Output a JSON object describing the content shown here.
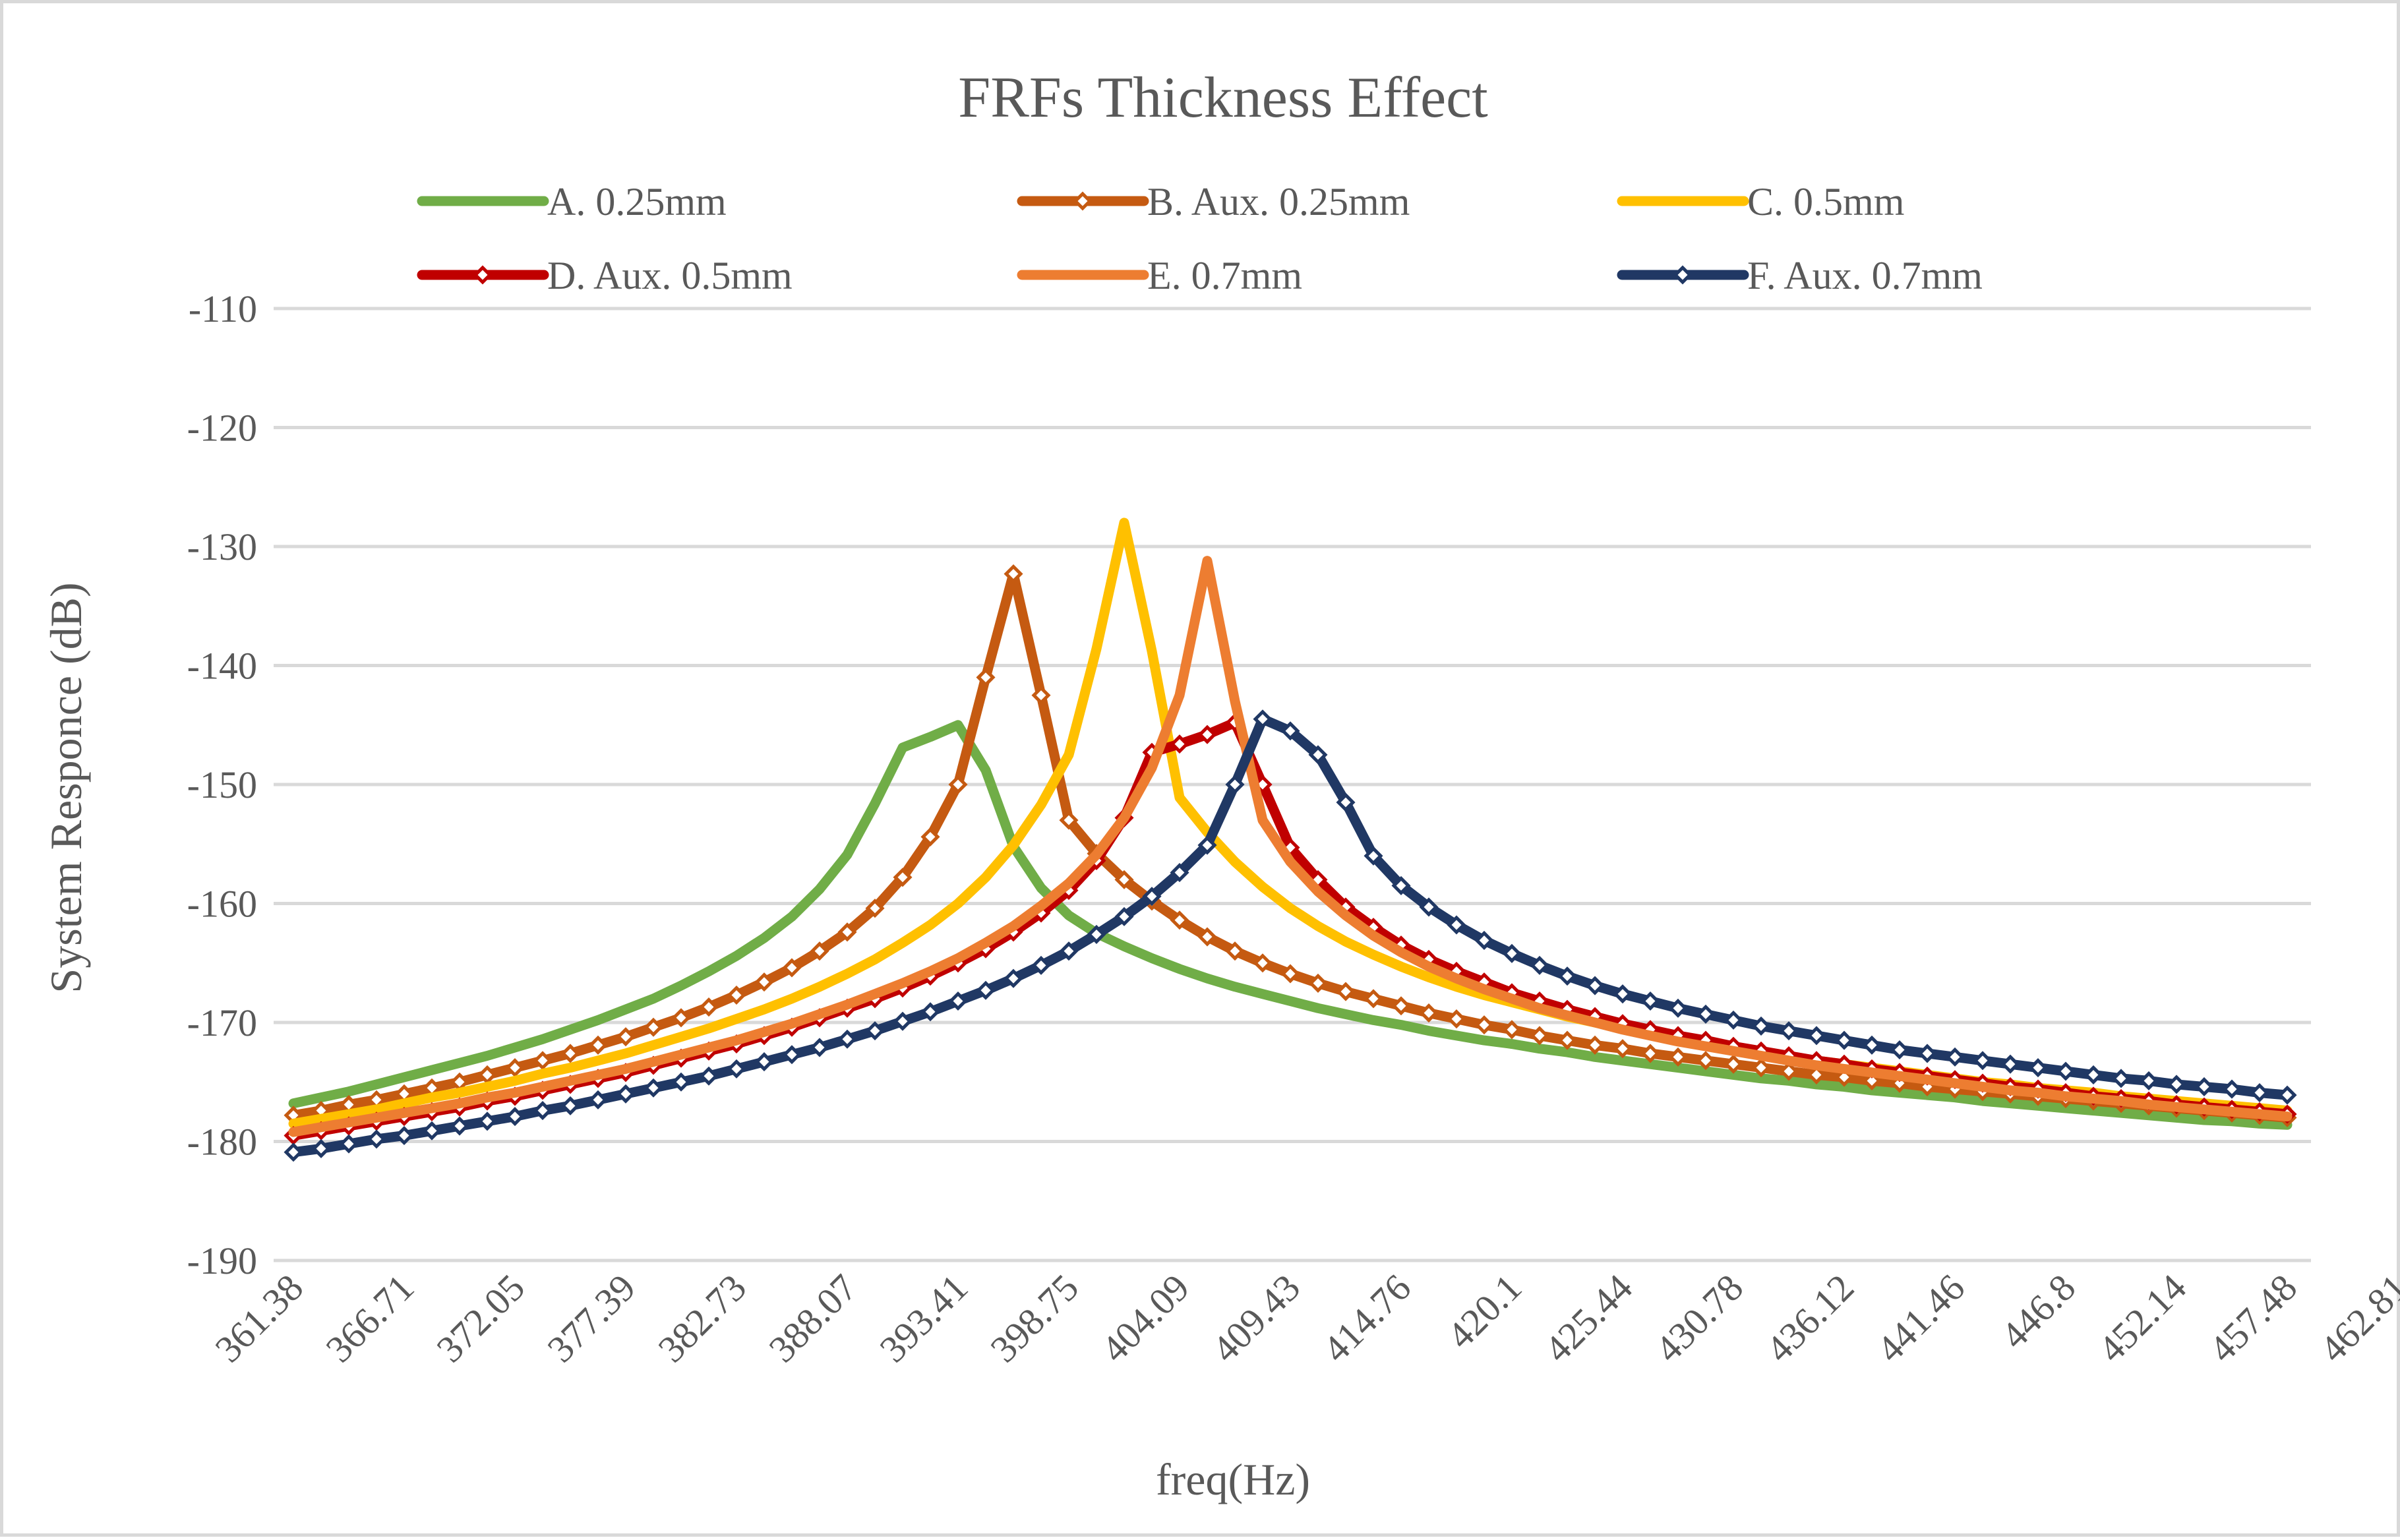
{
  "chart_data": {
    "type": "line",
    "title": "FRFs Thickness Effect",
    "xlabel": "freq(Hz)",
    "ylabel": "System  Responce (dB)",
    "ylim": [
      -190,
      -110
    ],
    "yticks": [
      -110,
      -120,
      -130,
      -140,
      -150,
      -160,
      -170,
      -180,
      -190
    ],
    "grid": true,
    "legend_position": "top",
    "x_start": 361.38,
    "x_step": 1.3349,
    "tick_labels": [
      "361.38",
      "366.71",
      "372.05",
      "377.39",
      "382.73",
      "388.07",
      "393.41",
      "398.75",
      "404.09",
      "409.43",
      "414.76",
      "420.1",
      "425.44",
      "430.78",
      "436.12",
      "441.46",
      "446.8",
      "452.14",
      "457.48",
      "462.81"
    ],
    "tick_every": 4,
    "series": [
      {
        "name": "A. 0.25mm",
        "color": "#70ad47",
        "marker": false,
        "values": [
          -176.8,
          -176.3,
          -175.8,
          -175.2,
          -174.6,
          -174.0,
          -173.4,
          -172.8,
          -172.1,
          -171.4,
          -170.6,
          -169.8,
          -168.9,
          -168.0,
          -166.9,
          -165.7,
          -164.4,
          -162.9,
          -161.1,
          -158.8,
          -155.9,
          -151.6,
          -146.9,
          -146.0,
          -145.0,
          -148.8,
          -155.2,
          -158.7,
          -161.0,
          -162.5,
          -163.6,
          -164.6,
          -165.5,
          -166.3,
          -167.0,
          -167.6,
          -168.2,
          -168.8,
          -169.3,
          -169.8,
          -170.2,
          -170.7,
          -171.1,
          -171.5,
          -171.8,
          -172.2,
          -172.5,
          -172.9,
          -173.2,
          -173.5,
          -173.8,
          -174.1,
          -174.4,
          -174.7,
          -174.9,
          -175.2,
          -175.4,
          -175.7,
          -175.9,
          -176.1,
          -176.3,
          -176.6,
          -176.8,
          -177.0,
          -177.2,
          -177.4,
          -177.6,
          -177.8,
          -178.0,
          -178.2,
          -178.3,
          -178.5,
          -178.6
        ]
      },
      {
        "name": "B. Aux. 0.25mm",
        "color": "#c55a11",
        "marker": true,
        "values": [
          -177.8,
          -177.4,
          -176.9,
          -176.5,
          -176.0,
          -175.5,
          -175.0,
          -174.4,
          -173.8,
          -173.2,
          -172.6,
          -171.9,
          -171.2,
          -170.4,
          -169.6,
          -168.7,
          -167.7,
          -166.6,
          -165.4,
          -164.0,
          -162.4,
          -160.4,
          -157.8,
          -154.4,
          -150.0,
          -141.0,
          -132.3,
          -142.5,
          -153.0,
          -155.8,
          -158.0,
          -159.8,
          -161.4,
          -162.8,
          -164.0,
          -165.0,
          -165.9,
          -166.7,
          -167.4,
          -168.0,
          -168.6,
          -169.2,
          -169.7,
          -170.2,
          -170.6,
          -171.1,
          -171.5,
          -171.9,
          -172.2,
          -172.6,
          -172.9,
          -173.2,
          -173.5,
          -173.8,
          -174.1,
          -174.4,
          -174.6,
          -174.9,
          -175.1,
          -175.4,
          -175.6,
          -175.8,
          -176.0,
          -176.2,
          -176.4,
          -176.6,
          -176.8,
          -177.0,
          -177.2,
          -177.4,
          -177.6,
          -177.8,
          -178.0
        ]
      },
      {
        "name": "C. 0.5mm",
        "color": "#ffc000",
        "marker": false,
        "values": [
          -178.5,
          -178.1,
          -177.7,
          -177.3,
          -176.8,
          -176.3,
          -175.9,
          -175.4,
          -174.9,
          -174.3,
          -173.8,
          -173.2,
          -172.6,
          -171.9,
          -171.2,
          -170.5,
          -169.7,
          -168.9,
          -168.0,
          -167.0,
          -165.9,
          -164.7,
          -163.3,
          -161.8,
          -160.0,
          -157.8,
          -155.1,
          -151.7,
          -147.5,
          -138.6,
          -128.0,
          -138.8,
          -151.1,
          -154.0,
          -156.5,
          -158.6,
          -160.4,
          -161.9,
          -163.2,
          -164.3,
          -165.3,
          -166.2,
          -167.0,
          -167.7,
          -168.3,
          -168.9,
          -169.5,
          -170.0,
          -170.5,
          -170.9,
          -171.4,
          -171.8,
          -172.2,
          -172.5,
          -172.9,
          -173.2,
          -173.5,
          -173.8,
          -174.1,
          -174.4,
          -174.7,
          -175.0,
          -175.2,
          -175.5,
          -175.7,
          -175.9,
          -176.2,
          -176.4,
          -176.6,
          -176.8,
          -177.0,
          -177.2,
          -177.4
        ]
      },
      {
        "name": "D. Aux. 0.5mm",
        "color": "#c00000",
        "marker": true,
        "values": [
          -179.5,
          -179.1,
          -178.7,
          -178.3,
          -177.9,
          -177.5,
          -177.1,
          -176.6,
          -176.2,
          -175.7,
          -175.2,
          -174.7,
          -174.2,
          -173.6,
          -173.0,
          -172.4,
          -171.8,
          -171.1,
          -170.4,
          -169.6,
          -168.8,
          -168.0,
          -167.1,
          -166.1,
          -165.0,
          -163.8,
          -162.4,
          -160.8,
          -158.9,
          -156.4,
          -152.8,
          -147.3,
          -146.6,
          -145.8,
          -144.8,
          -150.0,
          -155.3,
          -158.0,
          -160.3,
          -162.0,
          -163.5,
          -164.7,
          -165.7,
          -166.6,
          -167.5,
          -168.2,
          -168.9,
          -169.5,
          -170.1,
          -170.6,
          -171.1,
          -171.5,
          -172.0,
          -172.4,
          -172.8,
          -173.2,
          -173.5,
          -173.9,
          -174.2,
          -174.5,
          -174.8,
          -175.1,
          -175.4,
          -175.6,
          -175.9,
          -176.2,
          -176.4,
          -176.6,
          -176.9,
          -177.1,
          -177.3,
          -177.5,
          -177.7
        ]
      },
      {
        "name": "E. 0.7mm",
        "color": "#ed7d31",
        "marker": false,
        "values": [
          -179.2,
          -178.8,
          -178.4,
          -178.0,
          -177.6,
          -177.2,
          -176.8,
          -176.3,
          -175.9,
          -175.4,
          -174.9,
          -174.4,
          -173.9,
          -173.3,
          -172.7,
          -172.1,
          -171.5,
          -170.8,
          -170.1,
          -169.3,
          -168.5,
          -167.6,
          -166.7,
          -165.7,
          -164.6,
          -163.3,
          -161.9,
          -160.2,
          -158.3,
          -155.9,
          -152.8,
          -148.6,
          -142.5,
          -131.2,
          -143.0,
          -153.0,
          -156.5,
          -159.0,
          -161.0,
          -162.7,
          -164.1,
          -165.3,
          -166.3,
          -167.2,
          -168.0,
          -168.8,
          -169.4,
          -170.0,
          -170.6,
          -171.1,
          -171.6,
          -172.0,
          -172.4,
          -172.8,
          -173.2,
          -173.6,
          -173.9,
          -174.2,
          -174.5,
          -174.8,
          -175.1,
          -175.4,
          -175.7,
          -175.9,
          -176.2,
          -176.4,
          -176.6,
          -176.9,
          -177.1,
          -177.3,
          -177.5,
          -177.7,
          -177.9
        ]
      },
      {
        "name": "F. Aux. 0.7mm",
        "color": "#203864",
        "marker": true,
        "values": [
          -180.9,
          -180.6,
          -180.2,
          -179.8,
          -179.5,
          -179.1,
          -178.7,
          -178.3,
          -177.9,
          -177.4,
          -177.0,
          -176.5,
          -176.0,
          -175.5,
          -175.0,
          -174.5,
          -173.9,
          -173.3,
          -172.7,
          -172.1,
          -171.4,
          -170.7,
          -169.9,
          -169.1,
          -168.2,
          -167.3,
          -166.3,
          -165.2,
          -164.0,
          -162.6,
          -161.1,
          -159.4,
          -157.4,
          -155.1,
          -150.0,
          -144.5,
          -145.5,
          -147.5,
          -151.5,
          -156.0,
          -158.5,
          -160.3,
          -161.8,
          -163.1,
          -164.2,
          -165.2,
          -166.1,
          -166.9,
          -167.6,
          -168.2,
          -168.8,
          -169.3,
          -169.8,
          -170.3,
          -170.7,
          -171.1,
          -171.5,
          -171.9,
          -172.3,
          -172.6,
          -172.9,
          -173.2,
          -173.5,
          -173.8,
          -174.1,
          -174.4,
          -174.7,
          -174.9,
          -175.2,
          -175.4,
          -175.6,
          -175.9,
          -176.1
        ]
      }
    ]
  }
}
